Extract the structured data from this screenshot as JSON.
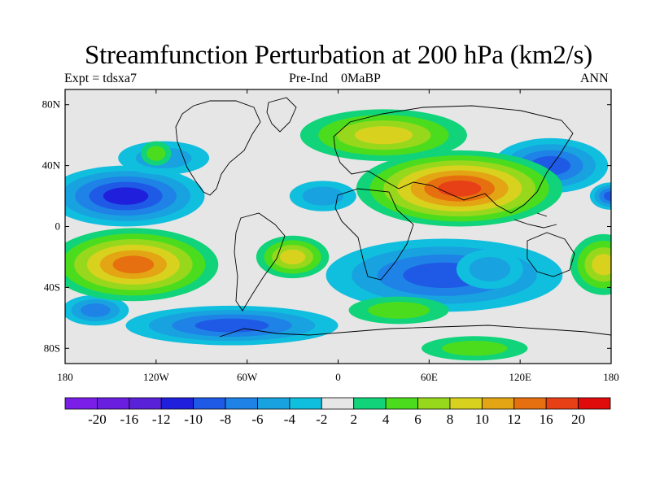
{
  "title": "Streamfunction Perturbation at 200 hPa (km2/s)",
  "subtitle_left": "Expt = tdsxa7",
  "subtitle_center": "Pre-Ind    0MaBP",
  "subtitle_right": "ANN",
  "lat_ticks": [
    {
      "value": 80,
      "label": "80N"
    },
    {
      "value": 40,
      "label": "40N"
    },
    {
      "value": 0,
      "label": "0"
    },
    {
      "value": -40,
      "label": "40S"
    },
    {
      "value": -80,
      "label": "80S"
    }
  ],
  "lon_ticks": [
    {
      "value": -180,
      "label": "180"
    },
    {
      "value": -120,
      "label": "120W"
    },
    {
      "value": -60,
      "label": "60W"
    },
    {
      "value": 0,
      "label": "0"
    },
    {
      "value": 60,
      "label": "60E"
    },
    {
      "value": 120,
      "label": "120E"
    },
    {
      "value": 180,
      "label": "180"
    }
  ],
  "lon_range": [
    -180,
    180
  ],
  "lat_range": [
    -90,
    90
  ],
  "colorbar": {
    "colors": [
      "#7a1ee8",
      "#6a1ee0",
      "#5a22d8",
      "#2020dc",
      "#1e5ae6",
      "#1e82e6",
      "#18a2e0",
      "#10bede",
      "#e6e6e6",
      "#10d37a",
      "#4cdc1e",
      "#98d81c",
      "#d8d21e",
      "#e4a514",
      "#e67010",
      "#e84016",
      "#e00c0c"
    ],
    "labels": [
      "-20",
      "-16",
      "-12",
      "-10",
      "-8",
      "-6",
      "-4",
      "-2",
      "2",
      "4",
      "6",
      "8",
      "10",
      "12",
      "16",
      "20"
    ]
  },
  "field_blobs": [
    {
      "lon": -140,
      "lat": 20,
      "rx": 52,
      "ry": 20,
      "level": -5
    },
    {
      "lon": -115,
      "lat": 45,
      "rx": 30,
      "ry": 11,
      "level": -2
    },
    {
      "lon": -160,
      "lat": -55,
      "rx": 22,
      "ry": 10,
      "level": -3
    },
    {
      "lon": -70,
      "lat": -65,
      "rx": 70,
      "ry": 13,
      "level": -4
    },
    {
      "lon": -10,
      "lat": 20,
      "rx": 22,
      "ry": 10,
      "level": -2
    },
    {
      "lon": 70,
      "lat": -32,
      "rx": 78,
      "ry": 24,
      "level": -4
    },
    {
      "lon": 100,
      "lat": -28,
      "rx": 22,
      "ry": 13,
      "level": -2
    },
    {
      "lon": 140,
      "lat": 40,
      "rx": 38,
      "ry": 18,
      "level": -4
    },
    {
      "lon": 180,
      "lat": 20,
      "rx": 14,
      "ry": 9,
      "level": -4
    },
    {
      "lon": -135,
      "lat": -25,
      "rx": 56,
      "ry": 24,
      "level": 6
    },
    {
      "lon": -30,
      "lat": -20,
      "rx": 24,
      "ry": 14,
      "level": 4
    },
    {
      "lon": 80,
      "lat": 25,
      "rx": 68,
      "ry": 25,
      "level": 7
    },
    {
      "lon": 30,
      "lat": 60,
      "rx": 55,
      "ry": 17,
      "level": 4
    },
    {
      "lon": 40,
      "lat": -55,
      "rx": 33,
      "ry": 9,
      "level": 2
    },
    {
      "lon": 90,
      "lat": -80,
      "rx": 35,
      "ry": 8,
      "level": 2
    },
    {
      "lon": 175,
      "lat": -25,
      "rx": 22,
      "ry": 20,
      "level": 4
    },
    {
      "lon": -120,
      "lat": 48,
      "rx": 10,
      "ry": 8,
      "level": 2
    }
  ]
}
